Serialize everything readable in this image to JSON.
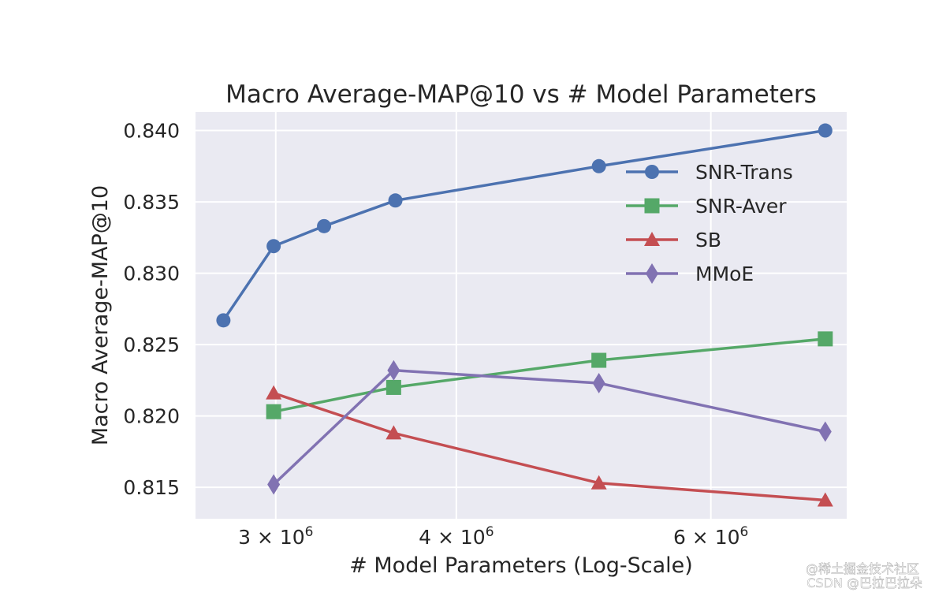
{
  "chart_data": {
    "type": "line",
    "title": "Macro Average-MAP@10 vs # Model Parameters",
    "xlabel": "# Model Parameters (Log-Scale)",
    "ylabel": "Macro Average-MAP@10",
    "xscale": "log",
    "xlim": [
      2640000,
      7450000
    ],
    "ylim": [
      0.8128,
      0.8413
    ],
    "yticks": [
      0.815,
      0.82,
      0.825,
      0.83,
      0.835,
      0.84
    ],
    "ytick_labels": [
      "0.815",
      "0.820",
      "0.825",
      "0.830",
      "0.835",
      "0.840"
    ],
    "xticks": [
      {
        "value": 3000000,
        "mantissa": "3",
        "times": "×",
        "base": "10",
        "exp": "6"
      },
      {
        "value": 4000000,
        "mantissa": "4",
        "times": "×",
        "base": "10",
        "exp": "6"
      },
      {
        "value": 6000000,
        "mantissa": "6",
        "times": "×",
        "base": "10",
        "exp": "6"
      }
    ],
    "grid": true,
    "legend_position": "top-right",
    "series": [
      {
        "name": "SNR-Trans",
        "color": "#4c72b0",
        "marker": "circle",
        "x": [
          2760000,
          2990000,
          3240000,
          3630000,
          5020000,
          7200000
        ],
        "y": [
          0.8267,
          0.8319,
          0.8333,
          0.8351,
          0.8375,
          0.84
        ]
      },
      {
        "name": "SNR-Aver",
        "color": "#55a868",
        "marker": "square",
        "x": [
          2990000,
          3620000,
          5020000,
          7200000
        ],
        "y": [
          0.8203,
          0.822,
          0.8239,
          0.8254
        ]
      },
      {
        "name": "SB",
        "color": "#c44e52",
        "marker": "triangle",
        "x": [
          2990000,
          3620000,
          5020000,
          7200000
        ],
        "y": [
          0.8216,
          0.8188,
          0.8153,
          0.8141
        ]
      },
      {
        "name": "MMoE",
        "color": "#8172b2",
        "marker": "diamond",
        "x": [
          2990000,
          3620000,
          5020000,
          7200000
        ],
        "y": [
          0.8152,
          0.8232,
          0.8223,
          0.8189
        ]
      }
    ]
  },
  "watermark": {
    "line1": "@稀土掘金技术社区",
    "line2": "CSDN @巴拉巴拉朵"
  }
}
